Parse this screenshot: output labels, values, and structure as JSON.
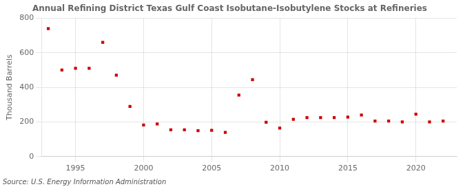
{
  "chart_data": {
    "type": "scatter",
    "title": "Annual Refining District Texas Gulf Coast Isobutane-Isobutylene Stocks at Refineries",
    "ylabel": "Thousand Barrels",
    "annotations": [
      "Source: U.S. Energy Information Administration"
    ],
    "x": [
      1993,
      1994,
      1995,
      1996,
      1997,
      1998,
      1999,
      2000,
      2001,
      2002,
      2003,
      2004,
      2005,
      2006,
      2007,
      2008,
      2009,
      2010,
      2011,
      2012,
      2013,
      2014,
      2015,
      2016,
      2017,
      2018,
      2019,
      2020,
      2021,
      2022
    ],
    "values": [
      740,
      500,
      510,
      510,
      660,
      470,
      290,
      182,
      188,
      155,
      155,
      150,
      152,
      140,
      355,
      445,
      198,
      165,
      215,
      225,
      225,
      225,
      228,
      240,
      205,
      205,
      200,
      245,
      200,
      205
    ],
    "color": "#cc0000",
    "marker": "square",
    "xlim": [
      1992.5,
      2023
    ],
    "xticks": [
      1995,
      2000,
      2005,
      2010,
      2015,
      2020
    ],
    "ylim": [
      0,
      800
    ],
    "yticks": [
      0,
      200,
      400,
      600,
      800
    ],
    "grid": true
  }
}
